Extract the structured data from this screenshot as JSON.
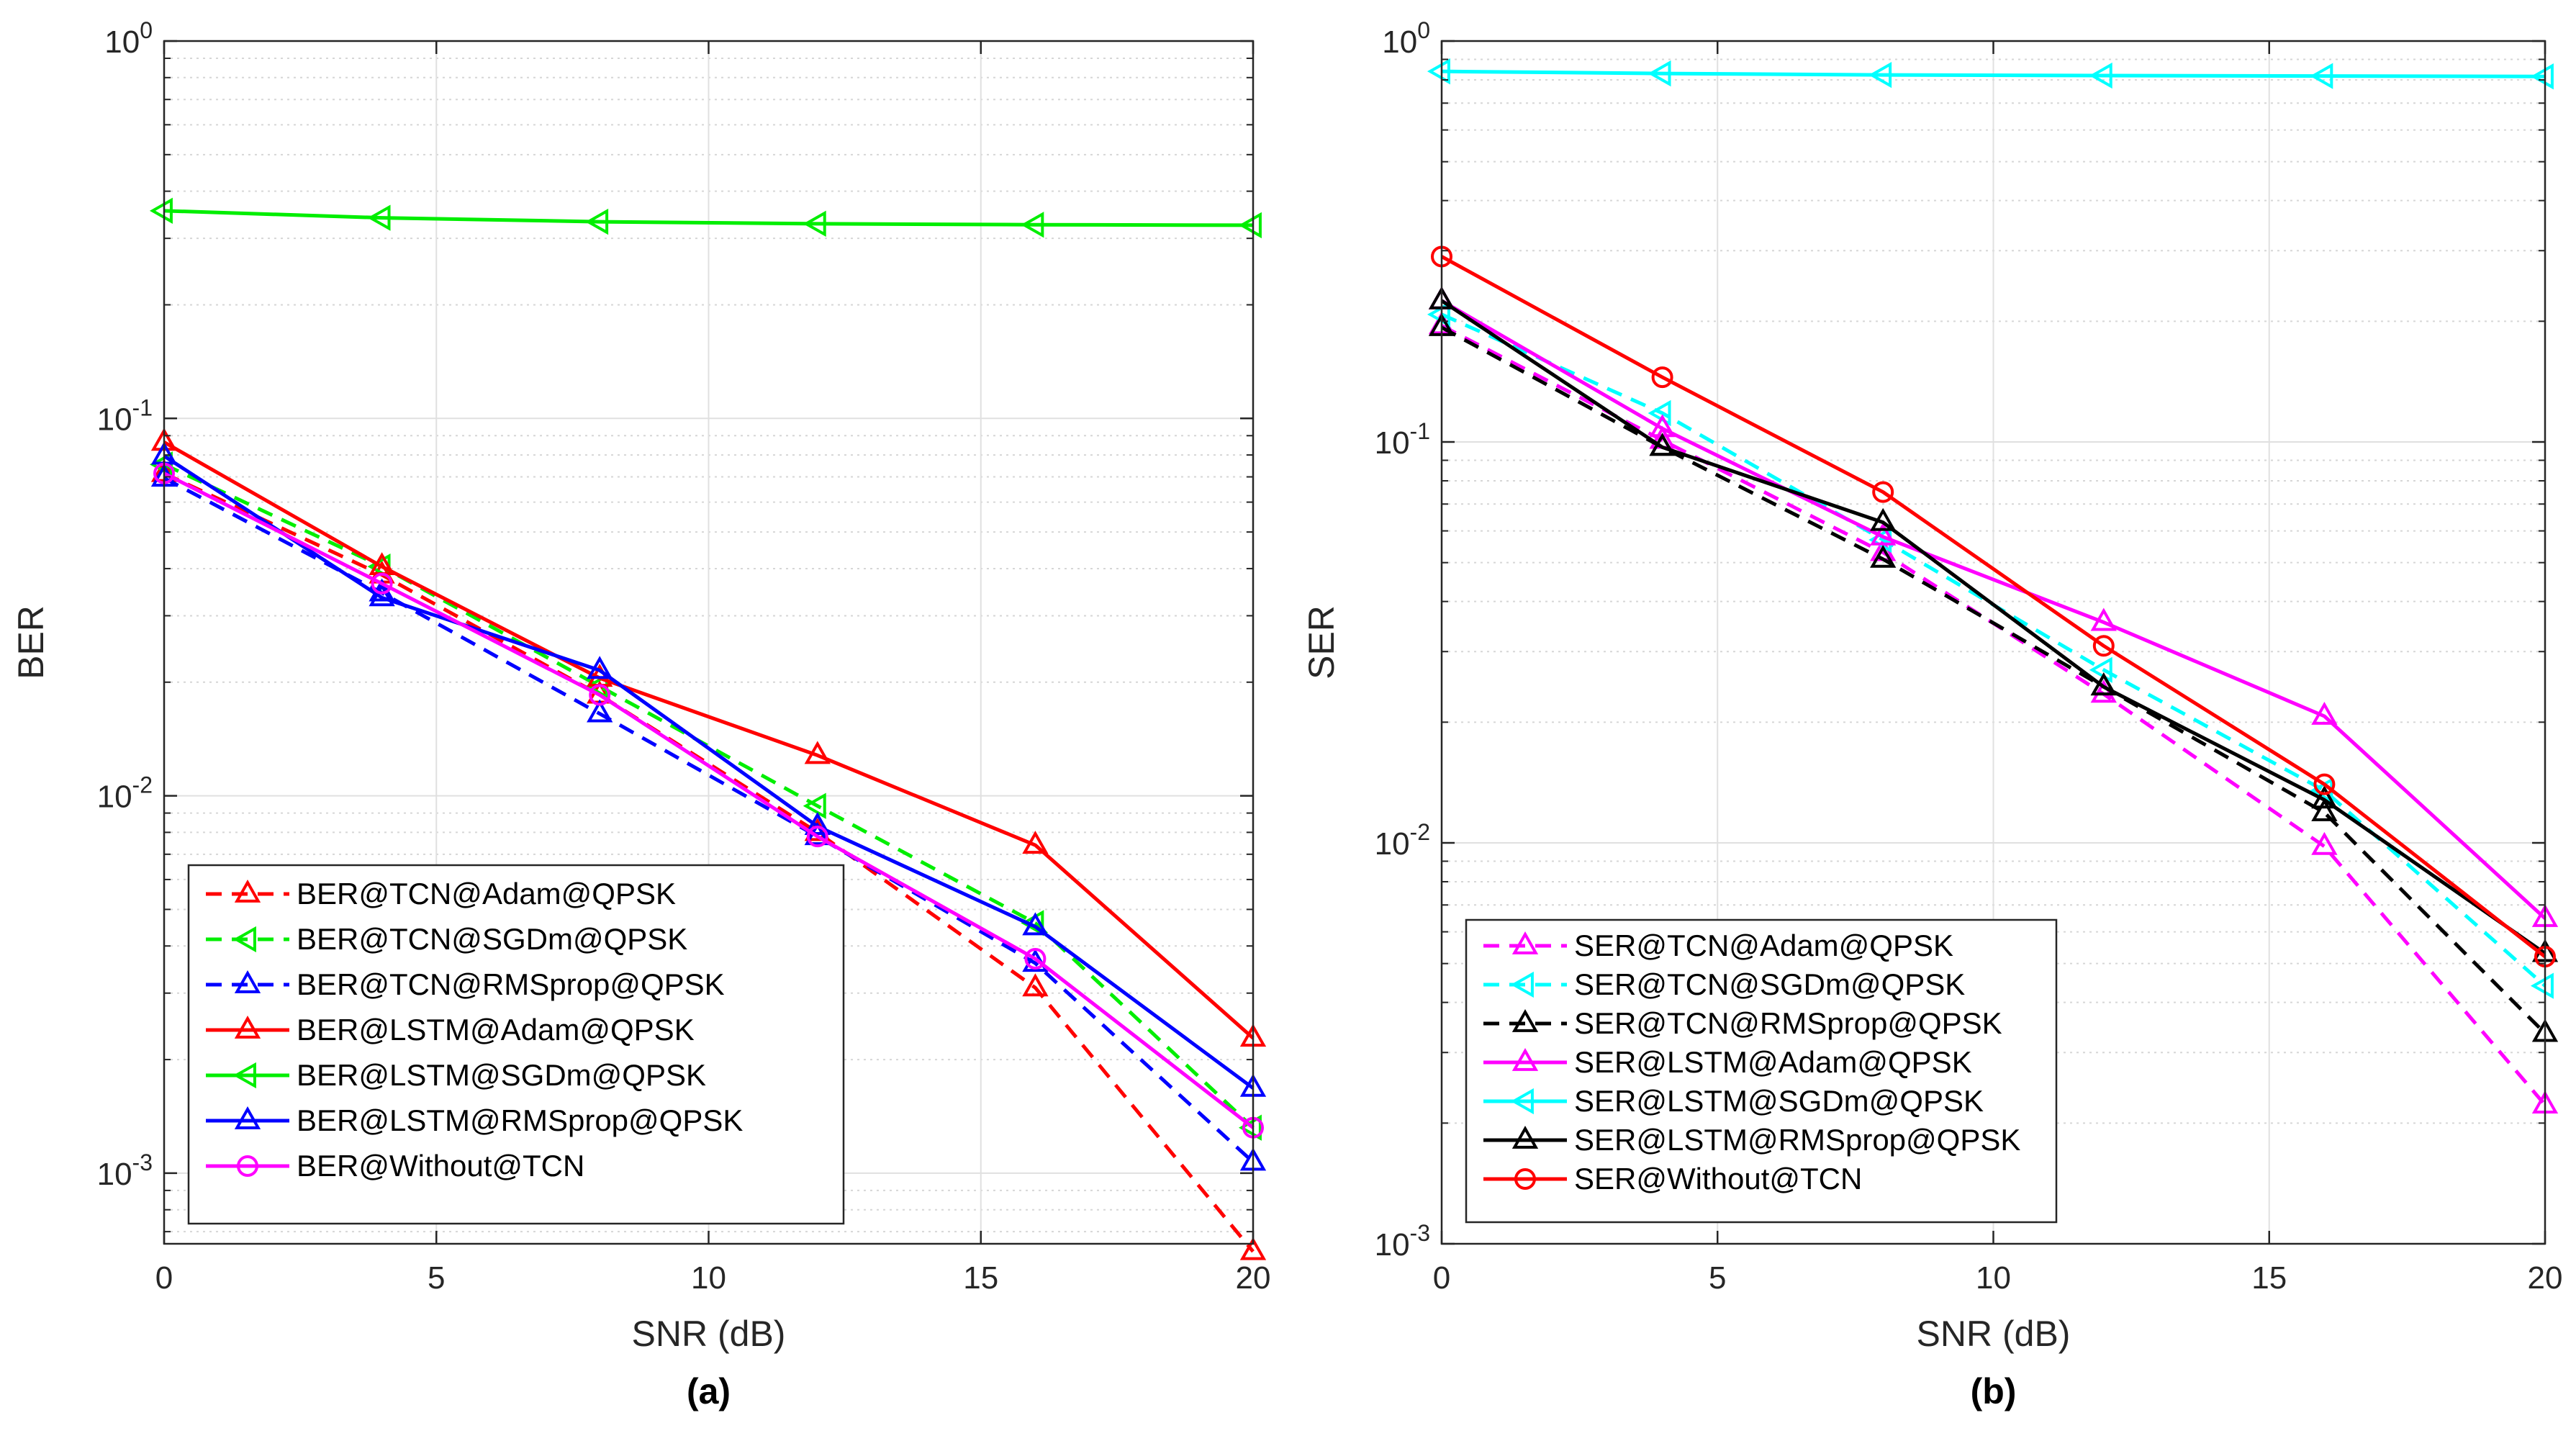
{
  "chart_data": [
    {
      "type": "line",
      "panel_label": "(a)",
      "xlabel": "SNR (dB)",
      "ylabel": "BER",
      "yscale": "log",
      "xlim": [
        0,
        20
      ],
      "ylim": [
        0.00065,
        1
      ],
      "x_ticks": [
        0,
        5,
        10,
        15,
        20
      ],
      "x_tick_labels": [
        "0",
        "5",
        "10",
        "15",
        "20"
      ],
      "y_ticks": [
        {
          "value": 1,
          "mantissa": "10",
          "exp": "0"
        },
        {
          "value": 0.1,
          "mantissa": "10",
          "exp": "-1"
        },
        {
          "value": 0.01,
          "mantissa": "10",
          "exp": "-2"
        },
        {
          "value": 0.001,
          "mantissa": "10",
          "exp": "-3"
        }
      ],
      "grid": true,
      "legend_position": "bottom-left",
      "x": [
        0,
        4,
        8,
        12,
        16,
        20
      ],
      "series": [
        {
          "name": "BER@TCN@Adam@QPSK",
          "color": "#ff0000",
          "dash": "dashed",
          "marker": "triangle-up",
          "values": [
            0.0715,
            0.0385,
            0.0185,
            0.008,
            0.0031,
            0.00062
          ]
        },
        {
          "name": "BER@TCN@SGDm@QPSK",
          "color": "#00ee00",
          "dash": "dashed",
          "marker": "triangle-left",
          "values": [
            0.0755,
            0.0405,
            0.0195,
            0.0094,
            0.0046,
            0.00132
          ]
        },
        {
          "name": "BER@TCN@RMSprop@QPSK",
          "color": "#0000ff",
          "dash": "dashed",
          "marker": "triangle-up",
          "values": [
            0.0695,
            0.0345,
            0.0165,
            0.0078,
            0.0036,
            0.00107
          ]
        },
        {
          "name": "BER@LSTM@Adam@QPSK",
          "color": "#ff0000",
          "dash": "solid",
          "marker": "triangle-up",
          "values": [
            0.0865,
            0.0405,
            0.0205,
            0.0128,
            0.0074,
            0.00228
          ]
        },
        {
          "name": "BER@LSTM@SGDm@QPSK",
          "color": "#00ee00",
          "dash": "solid",
          "marker": "triangle-left",
          "values": [
            0.355,
            0.34,
            0.332,
            0.328,
            0.326,
            0.325
          ]
        },
        {
          "name": "BER@LSTM@RMSprop@QPSK",
          "color": "#0000ff",
          "dash": "solid",
          "marker": "triangle-up",
          "values": [
            0.0795,
            0.0335,
            0.0215,
            0.0083,
            0.0045,
            0.00168
          ]
        },
        {
          "name": "BER@Without@TCN",
          "color": "#ff00ff",
          "dash": "solid",
          "marker": "circle",
          "values": [
            0.0715,
            0.0365,
            0.0185,
            0.0078,
            0.0037,
            0.00132
          ]
        }
      ]
    },
    {
      "type": "line",
      "panel_label": "(b)",
      "xlabel": "SNR (dB)",
      "ylabel": "SER",
      "yscale": "log",
      "xlim": [
        0,
        20
      ],
      "ylim": [
        0.001,
        1
      ],
      "x_ticks": [
        0,
        5,
        10,
        15,
        20
      ],
      "x_tick_labels": [
        "0",
        "5",
        "10",
        "15",
        "20"
      ],
      "y_ticks": [
        {
          "value": 1,
          "mantissa": "10",
          "exp": "0"
        },
        {
          "value": 0.1,
          "mantissa": "10",
          "exp": "-1"
        },
        {
          "value": 0.01,
          "mantissa": "10",
          "exp": "-2"
        },
        {
          "value": 0.001,
          "mantissa": "10",
          "exp": "-3"
        }
      ],
      "grid": true,
      "legend_position": "bottom-left",
      "x": [
        0,
        4,
        8,
        12,
        16,
        20
      ],
      "series": [
        {
          "name": "SER@TCN@Adam@QPSK",
          "color": "#ff00ff",
          "dash": "dashed",
          "marker": "triangle-up",
          "values": [
            0.195,
            0.101,
            0.053,
            0.0235,
            0.0098,
            0.00222
          ]
        },
        {
          "name": "SER@TCN@SGDm@QPSK",
          "color": "#00ffff",
          "dash": "dashed",
          "marker": "triangle-left",
          "values": [
            0.208,
            0.118,
            0.057,
            0.027,
            0.0135,
            0.0044
          ]
        },
        {
          "name": "SER@TCN@RMSprop@QPSK",
          "color": "#000000",
          "dash": "dashed",
          "marker": "triangle-up",
          "values": [
            0.193,
            0.097,
            0.051,
            0.0245,
            0.0119,
            0.00335
          ]
        },
        {
          "name": "SER@LSTM@Adam@QPSK",
          "color": "#ff00ff",
          "dash": "solid",
          "marker": "triangle-up",
          "values": [
            0.225,
            0.108,
            0.058,
            0.0355,
            0.0207,
            0.00648
          ]
        },
        {
          "name": "SER@LSTM@SGDm@QPSK",
          "color": "#00ffff",
          "dash": "solid",
          "marker": "triangle-left",
          "values": [
            0.84,
            0.83,
            0.823,
            0.82,
            0.818,
            0.816
          ]
        },
        {
          "name": "SER@LSTM@RMSprop@QPSK",
          "color": "#000000",
          "dash": "solid",
          "marker": "triangle-up",
          "values": [
            0.225,
            0.097,
            0.063,
            0.0245,
            0.0128,
            0.0053
          ]
        },
        {
          "name": "SER@Without@TCN",
          "color": "#ff0000",
          "dash": "solid",
          "marker": "circle",
          "values": [
            0.29,
            0.145,
            0.075,
            0.031,
            0.014,
            0.0052
          ]
        }
      ]
    }
  ]
}
